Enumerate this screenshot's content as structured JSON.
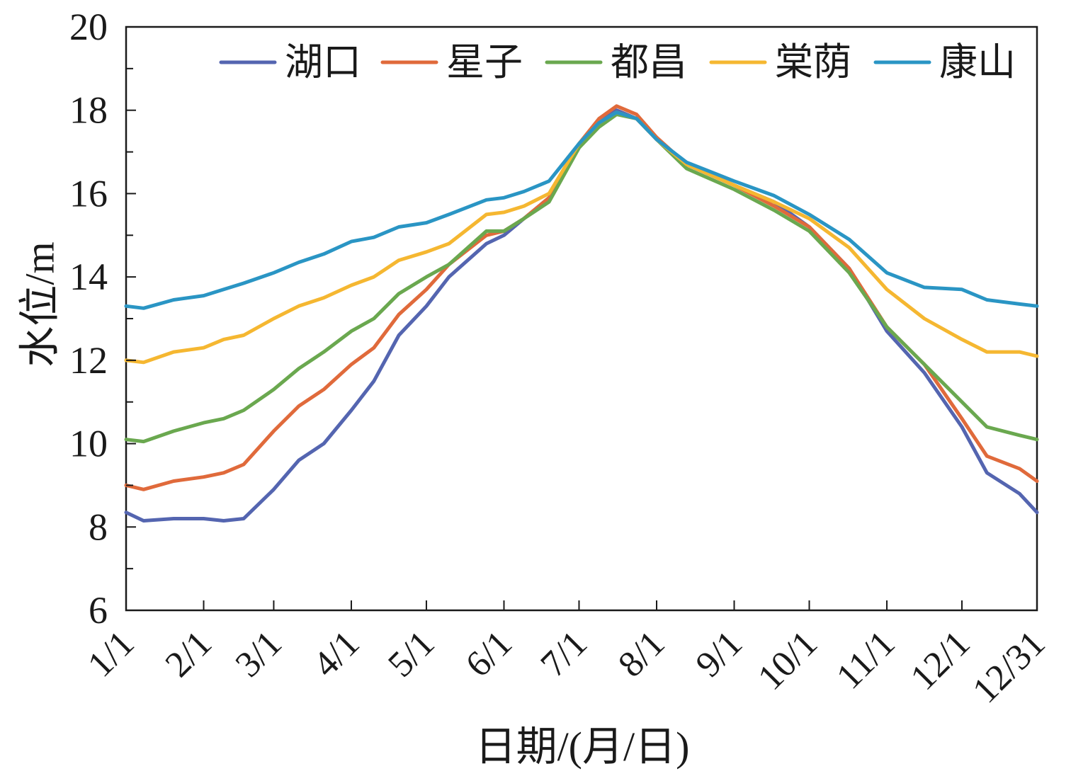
{
  "chart_data": {
    "type": "line",
    "title": "",
    "xlabel": "日期/(月/日)",
    "ylabel": "水位/m",
    "ylim": [
      6,
      20
    ],
    "y_ticks": [
      6,
      8,
      10,
      12,
      14,
      16,
      18,
      20
    ],
    "x_tick_labels": [
      "1/1",
      "2/1",
      "3/1",
      "4/1",
      "5/1",
      "6/1",
      "7/1",
      "8/1",
      "9/1",
      "10/1",
      "11/1",
      "12/1",
      "12/31"
    ],
    "x_tick_days": [
      1,
      32,
      60,
      91,
      121,
      152,
      182,
      213,
      244,
      274,
      305,
      335,
      365
    ],
    "x_range_days": [
      1,
      365
    ],
    "grid": false,
    "legend_position": "top-right",
    "series": [
      {
        "name": "湖口",
        "color": "#5465b0",
        "x": [
          1,
          8,
          20,
          32,
          40,
          48,
          60,
          70,
          80,
          91,
          100,
          110,
          121,
          130,
          145,
          152,
          160,
          170,
          182,
          190,
          197,
          205,
          213,
          225,
          244,
          260,
          274,
          290,
          305,
          320,
          335,
          345,
          358,
          365
        ],
        "y": [
          8.35,
          8.15,
          8.2,
          8.2,
          8.15,
          8.2,
          8.9,
          9.6,
          10.0,
          10.8,
          11.5,
          12.6,
          13.3,
          14.0,
          14.8,
          15.0,
          15.4,
          15.9,
          17.1,
          17.7,
          18.0,
          17.8,
          17.3,
          16.7,
          16.2,
          15.8,
          15.2,
          14.2,
          12.7,
          11.7,
          10.4,
          9.3,
          8.8,
          8.35
        ]
      },
      {
        "name": "星子",
        "color": "#e06a3b",
        "x": [
          1,
          8,
          20,
          32,
          40,
          48,
          60,
          70,
          80,
          91,
          100,
          110,
          121,
          130,
          145,
          152,
          160,
          170,
          182,
          190,
          197,
          205,
          213,
          225,
          244,
          260,
          274,
          290,
          305,
          320,
          335,
          345,
          358,
          365
        ],
        "y": [
          9.0,
          8.9,
          9.1,
          9.2,
          9.3,
          9.5,
          10.3,
          10.9,
          11.3,
          11.9,
          12.3,
          13.1,
          13.7,
          14.3,
          15.0,
          15.1,
          15.4,
          15.9,
          17.2,
          17.8,
          18.1,
          17.9,
          17.35,
          16.7,
          16.2,
          15.7,
          15.2,
          14.2,
          12.8,
          11.9,
          10.6,
          9.7,
          9.4,
          9.1
        ]
      },
      {
        "name": "都昌",
        "color": "#6aa84f",
        "x": [
          1,
          8,
          20,
          32,
          40,
          48,
          60,
          70,
          80,
          91,
          100,
          110,
          121,
          130,
          145,
          152,
          160,
          170,
          182,
          190,
          197,
          205,
          213,
          225,
          244,
          260,
          274,
          290,
          305,
          320,
          335,
          345,
          358,
          365
        ],
        "y": [
          10.1,
          10.05,
          10.3,
          10.5,
          10.6,
          10.8,
          11.3,
          11.8,
          12.2,
          12.7,
          13.0,
          13.6,
          14.0,
          14.3,
          15.1,
          15.1,
          15.4,
          15.8,
          17.1,
          17.6,
          17.9,
          17.8,
          17.3,
          16.6,
          16.1,
          15.6,
          15.1,
          14.1,
          12.8,
          11.9,
          11.0,
          10.4,
          10.2,
          10.1
        ]
      },
      {
        "name": "棠荫",
        "color": "#f5b731",
        "x": [
          1,
          8,
          20,
          32,
          40,
          48,
          60,
          70,
          80,
          91,
          100,
          110,
          121,
          130,
          145,
          152,
          160,
          170,
          182,
          190,
          197,
          205,
          213,
          225,
          244,
          260,
          274,
          290,
          305,
          320,
          335,
          345,
          358,
          365
        ],
        "y": [
          12.0,
          11.95,
          12.2,
          12.3,
          12.5,
          12.6,
          13.0,
          13.3,
          13.5,
          13.8,
          14.0,
          14.4,
          14.6,
          14.8,
          15.5,
          15.55,
          15.7,
          16.0,
          17.2,
          17.7,
          17.95,
          17.8,
          17.3,
          16.7,
          16.2,
          15.8,
          15.4,
          14.7,
          13.7,
          13.0,
          12.5,
          12.2,
          12.2,
          12.1
        ]
      },
      {
        "name": "康山",
        "color": "#2a95c4",
        "x": [
          1,
          8,
          20,
          32,
          40,
          48,
          60,
          70,
          80,
          91,
          100,
          110,
          121,
          130,
          145,
          152,
          160,
          170,
          182,
          190,
          197,
          205,
          213,
          225,
          244,
          260,
          274,
          290,
          305,
          320,
          335,
          345,
          358,
          365
        ],
        "y": [
          13.3,
          13.25,
          13.45,
          13.55,
          13.7,
          13.85,
          14.1,
          14.35,
          14.55,
          14.85,
          14.95,
          15.2,
          15.3,
          15.5,
          15.85,
          15.9,
          16.05,
          16.3,
          17.2,
          17.7,
          17.95,
          17.8,
          17.3,
          16.75,
          16.3,
          15.95,
          15.5,
          14.9,
          14.1,
          13.75,
          13.7,
          13.45,
          13.35,
          13.3
        ]
      }
    ]
  }
}
